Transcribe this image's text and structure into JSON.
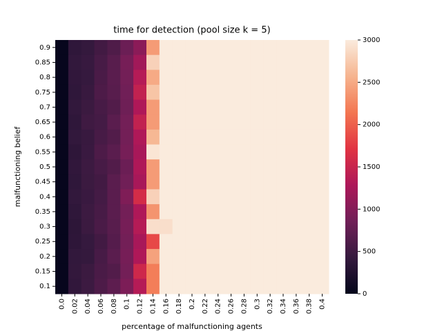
{
  "chart_data": {
    "type": "heatmap",
    "title": "time for detection (pool size k = 5)",
    "x_label": "percentage of malfunctioning agents",
    "y_label": "malfunctioning belief",
    "x_categories": [
      "0.0",
      "0.02",
      "0.04",
      "0.06",
      "0.08",
      "0.1",
      "0.12",
      "0.14",
      "0.16",
      "0.18",
      "0.2",
      "0.22",
      "0.24",
      "0.26",
      "0.28",
      "0.3",
      "0.32",
      "0.34",
      "0.36",
      "0.38",
      "0.4"
    ],
    "y_categories": [
      "0.9",
      "0.85",
      "0.8",
      "0.75",
      "0.7",
      "0.65",
      "0.6",
      "0.55",
      "0.5",
      "0.45",
      "0.4",
      "0.35",
      "0.3",
      "0.25",
      "0.2",
      "0.15",
      "0.1"
    ],
    "values": [
      [
        30,
        380,
        420,
        520,
        620,
        820,
        1050,
        2400,
        3000,
        3000,
        3000,
        3000,
        3000,
        3000,
        3000,
        3000,
        3000,
        3000,
        3000,
        3000,
        3000
      ],
      [
        30,
        400,
        440,
        560,
        680,
        900,
        1200,
        2800,
        3000,
        3000,
        3000,
        3000,
        3000,
        3000,
        3000,
        3000,
        3000,
        3000,
        3000,
        3000,
        3000
      ],
      [
        30,
        390,
        430,
        580,
        700,
        880,
        1350,
        2500,
        3000,
        3000,
        3000,
        3000,
        3000,
        3000,
        3000,
        3000,
        3000,
        3000,
        3000,
        3000,
        3000
      ],
      [
        30,
        380,
        450,
        600,
        680,
        860,
        1450,
        2700,
        3000,
        3000,
        3000,
        3000,
        3000,
        3000,
        3000,
        3000,
        3000,
        3000,
        3000,
        3000,
        3000
      ],
      [
        30,
        400,
        470,
        560,
        640,
        840,
        1300,
        2400,
        3000,
        3000,
        3000,
        3000,
        3000,
        3000,
        3000,
        3000,
        3000,
        3000,
        3000,
        3000,
        3000
      ],
      [
        30,
        380,
        500,
        540,
        700,
        880,
        1450,
        2400,
        3000,
        3000,
        3000,
        3000,
        3000,
        3000,
        3000,
        3000,
        3000,
        3000,
        3000,
        3000,
        3000
      ],
      [
        30,
        400,
        450,
        560,
        640,
        880,
        1300,
        2600,
        3000,
        3000,
        3000,
        3000,
        3000,
        3000,
        3000,
        3000,
        3000,
        3000,
        3000,
        3000,
        3000
      ],
      [
        30,
        370,
        460,
        600,
        700,
        900,
        1250,
        2950,
        3000,
        3000,
        3000,
        3000,
        3000,
        3000,
        3000,
        3000,
        3000,
        3000,
        3000,
        3000,
        3000
      ],
      [
        30,
        390,
        480,
        560,
        640,
        820,
        1300,
        2400,
        3000,
        3000,
        3000,
        3000,
        3000,
        3000,
        3000,
        3000,
        3000,
        3000,
        3000,
        3000,
        3000
      ],
      [
        30,
        380,
        470,
        520,
        700,
        860,
        1250,
        2400,
        3000,
        3000,
        3000,
        3000,
        3000,
        3000,
        3000,
        3000,
        3000,
        3000,
        3000,
        3000,
        3000
      ],
      [
        30,
        400,
        460,
        540,
        700,
        960,
        1600,
        2800,
        3000,
        3000,
        3000,
        3000,
        3000,
        3000,
        3000,
        3000,
        3000,
        3000,
        3000,
        3000,
        3000
      ],
      [
        30,
        380,
        480,
        560,
        700,
        880,
        1300,
        2350,
        3000,
        3000,
        3000,
        3000,
        3000,
        3000,
        3000,
        3000,
        3000,
        3000,
        3000,
        3000,
        3000
      ],
      [
        30,
        360,
        470,
        580,
        680,
        900,
        1350,
        2900,
        2900,
        3000,
        3000,
        3000,
        3000,
        3000,
        3000,
        3000,
        3000,
        3000,
        3000,
        3000,
        3000
      ],
      [
        30,
        370,
        430,
        520,
        660,
        880,
        1250,
        1850,
        3000,
        3000,
        3000,
        3000,
        3000,
        3000,
        3000,
        3000,
        3000,
        3000,
        3000,
        3000,
        3000
      ],
      [
        30,
        400,
        420,
        560,
        700,
        900,
        1300,
        2450,
        3000,
        3000,
        3000,
        3000,
        3000,
        3000,
        3000,
        3000,
        3000,
        3000,
        3000,
        3000,
        3000
      ],
      [
        30,
        410,
        470,
        580,
        640,
        880,
        1550,
        2200,
        3000,
        3000,
        3000,
        3000,
        3000,
        3000,
        3000,
        3000,
        3000,
        3000,
        3000,
        3000,
        3000
      ],
      [
        30,
        390,
        480,
        600,
        720,
        940,
        1350,
        2200,
        3000,
        3000,
        3000,
        3000,
        3000,
        3000,
        3000,
        3000,
        3000,
        3000,
        3000,
        3000,
        3000
      ]
    ],
    "clim": [
      0,
      3000
    ],
    "cticks": [
      0,
      500,
      1000,
      1500,
      2000,
      2500,
      3000
    ],
    "colormap": [
      "#03051a",
      "#35193e",
      "#701f57",
      "#ad1759",
      "#e13342",
      "#f37651",
      "#f6b48f",
      "#faebdd"
    ]
  }
}
